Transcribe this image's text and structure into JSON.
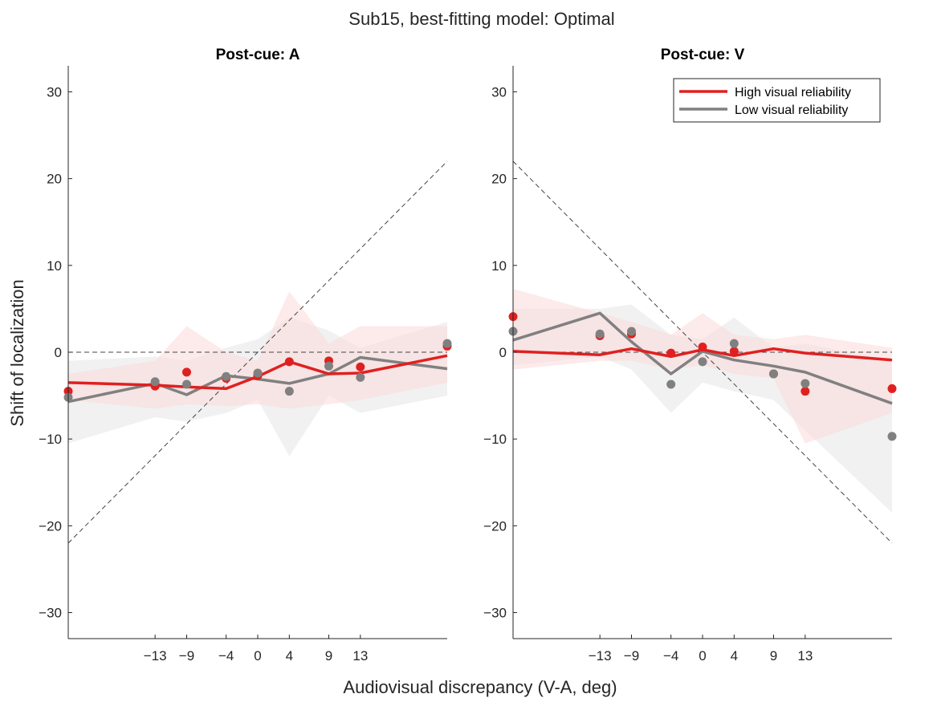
{
  "figure": {
    "title": "Sub15, best-fitting model: Optimal",
    "xlabel": "Audiovisual discrepancy (V-A, deg)",
    "ylabel": "Shift of localization"
  },
  "legend": {
    "location": "top-right",
    "entries": [
      {
        "label": "High visual reliability",
        "color": "#e02020"
      },
      {
        "label": "Low visual reliability",
        "color": "#808080"
      }
    ]
  },
  "chart_data": [
    {
      "type": "line",
      "title": "Post-cue: A",
      "xlim": [
        -24,
        24
      ],
      "ylim": [
        -33,
        33
      ],
      "xticks": [
        -13,
        -9,
        -4,
        0,
        4,
        9,
        13
      ],
      "yticks": [
        -30,
        -20,
        -10,
        0,
        10,
        20,
        30
      ],
      "reference_lines": [
        {
          "style": "dashed",
          "points": [
            [
              -24,
              0
            ],
            [
              24,
              0
            ]
          ]
        },
        {
          "style": "dashed",
          "points": [
            [
              -24,
              -22
            ],
            [
              24,
              22
            ]
          ]
        }
      ],
      "x": [
        -24,
        -13,
        -9,
        -4,
        0,
        4,
        9,
        13,
        24
      ],
      "series": [
        {
          "name": "High visual reliability",
          "color": "#e02020",
          "model": [
            -3.5,
            -3.8,
            -4.0,
            -4.2,
            -2.8,
            -1.1,
            -2.5,
            -2.4,
            -0.4
          ],
          "band_lower": [
            -5.5,
            -6.5,
            -6.0,
            -6.2,
            -6.0,
            -6.5,
            -6.0,
            -5.5,
            -3.5
          ],
          "band_upper": [
            -2.5,
            -1.0,
            3.0,
            0.0,
            -1.0,
            7.0,
            1.0,
            3.0,
            3.0
          ],
          "data": [
            -4.5,
            -3.9,
            -2.3,
            -3.0,
            -2.7,
            -1.1,
            -1.0,
            -1.7,
            0.7
          ]
        },
        {
          "name": "Low visual reliability",
          "color": "#808080",
          "model": [
            -5.7,
            -3.6,
            -4.9,
            -2.7,
            -3.1,
            -3.6,
            -2.5,
            -0.6,
            -1.9
          ],
          "band_lower": [
            -10.5,
            -7.5,
            -8.0,
            -7.0,
            -5.5,
            -12.0,
            -5.0,
            -7.0,
            -5.0
          ],
          "band_upper": [
            -1.0,
            -0.5,
            -1.0,
            0.5,
            1.5,
            4.0,
            2.5,
            0.5,
            3.5
          ],
          "data": [
            -5.2,
            -3.4,
            -3.7,
            -2.8,
            -2.4,
            -4.5,
            -1.6,
            -2.9,
            1.0
          ]
        }
      ]
    },
    {
      "type": "line",
      "title": "Post-cue: V",
      "xlim": [
        -24,
        24
      ],
      "ylim": [
        -33,
        33
      ],
      "xticks": [
        -13,
        -9,
        -4,
        0,
        4,
        9,
        13
      ],
      "yticks": [
        -30,
        -20,
        -10,
        0,
        10,
        20,
        30
      ],
      "reference_lines": [
        {
          "style": "dashed",
          "points": [
            [
              -24,
              0
            ],
            [
              24,
              0
            ]
          ]
        },
        {
          "style": "dashed",
          "points": [
            [
              -24,
              22
            ],
            [
              24,
              -22
            ]
          ]
        }
      ],
      "x": [
        -24,
        -13,
        -9,
        -4,
        0,
        4,
        9,
        13,
        24
      ],
      "series": [
        {
          "name": "High visual reliability",
          "color": "#e02020",
          "model": [
            0.1,
            -0.3,
            0.4,
            -0.5,
            0.3,
            -0.4,
            0.4,
            -0.1,
            -0.9
          ],
          "band_lower": [
            -2.0,
            -1.0,
            -1.0,
            -2.0,
            -1.5,
            -2.5,
            -3.0,
            -10.5,
            -7.0
          ],
          "band_upper": [
            7.3,
            4.5,
            3.5,
            2.0,
            4.5,
            2.0,
            1.5,
            2.0,
            0.5
          ],
          "data": [
            4.1,
            1.9,
            2.1,
            -0.1,
            0.6,
            0.1,
            -2.5,
            -4.5,
            -4.2
          ]
        },
        {
          "name": "Low visual reliability",
          "color": "#808080",
          "model": [
            1.4,
            4.5,
            1.2,
            -2.5,
            0.1,
            -0.9,
            -1.6,
            -2.3,
            -5.9
          ],
          "band_lower": [
            -1.5,
            -0.5,
            -2.0,
            -7.0,
            -3.5,
            -4.5,
            -5.5,
            -9.0,
            -18.5
          ],
          "band_upper": [
            5.0,
            5.0,
            5.5,
            2.0,
            1.5,
            4.0,
            0.5,
            1.0,
            -1.0
          ],
          "data": [
            2.4,
            2.1,
            2.4,
            -3.7,
            -1.1,
            1.0,
            -2.5,
            -3.6,
            -9.7
          ]
        }
      ]
    }
  ]
}
